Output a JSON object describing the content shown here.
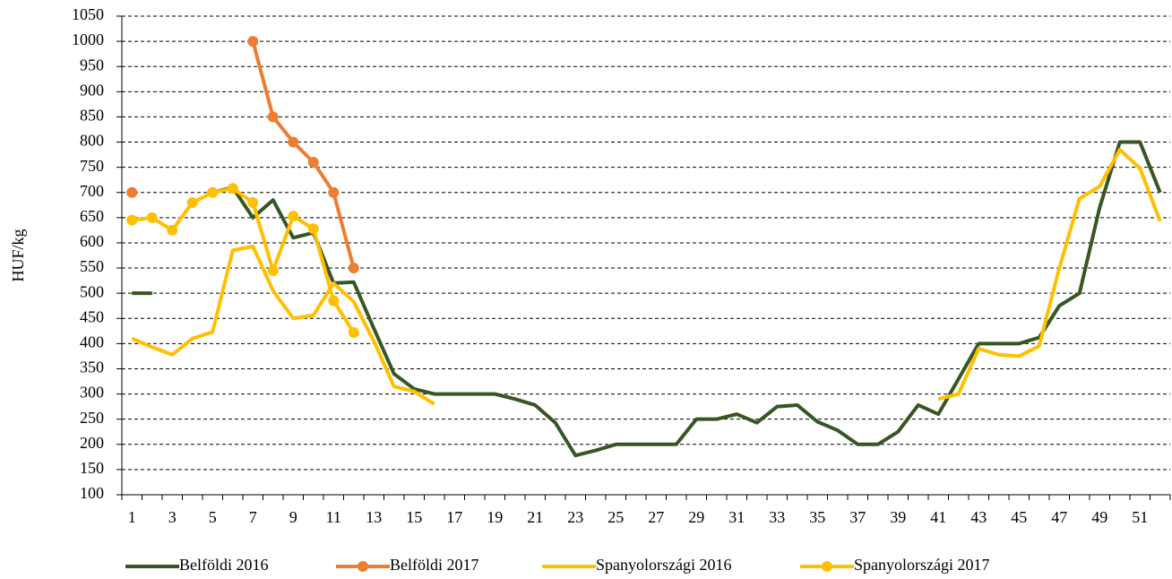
{
  "chart_data": {
    "type": "line",
    "y_label": "HUF/kg",
    "categories": [
      "1",
      null,
      "3",
      null,
      "5",
      null,
      "7",
      null,
      "9",
      null,
      "11",
      null,
      "13",
      null,
      "15",
      null,
      "17",
      null,
      "19",
      null,
      "21",
      null,
      "23",
      null,
      "25",
      null,
      "27",
      null,
      "29",
      null,
      "31",
      null,
      "33",
      null,
      "35",
      null,
      "37",
      null,
      "39",
      null,
      "41",
      null,
      "43",
      null,
      "45",
      null,
      "47",
      null,
      "49",
      null,
      "51",
      null
    ],
    "ylim": [
      100,
      1050
    ],
    "yticks": [
      100,
      150,
      200,
      250,
      300,
      350,
      400,
      450,
      500,
      550,
      600,
      650,
      700,
      750,
      800,
      850,
      900,
      950,
      1000,
      1050
    ],
    "grid": true,
    "legend": "bottom",
    "series": [
      {
        "name": "Belföldi 2016",
        "color": "#375623",
        "markers": false,
        "values": [
          500,
          500,
          null,
          null,
          700,
          710,
          650,
          685,
          610,
          620,
          520,
          522,
          430,
          340,
          310,
          300,
          300,
          300,
          300,
          290,
          278,
          243,
          178,
          188,
          200,
          200,
          200,
          200,
          250,
          250,
          260,
          243,
          275,
          278,
          245,
          228,
          200,
          200,
          225,
          278,
          260,
          330,
          400,
          400,
          400,
          412,
          475,
          500,
          670,
          800,
          800,
          700
        ]
      },
      {
        "name": "Belföldi 2017",
        "color": "#ed7d31",
        "markers": true,
        "values": [
          700,
          null,
          null,
          null,
          null,
          null,
          1000,
          850,
          800,
          760,
          700,
          550,
          null,
          null,
          null,
          null,
          null,
          null,
          null,
          null,
          null,
          null,
          null,
          null,
          null,
          null,
          null,
          null,
          null,
          null,
          null,
          null,
          null,
          null,
          null,
          null,
          null,
          null,
          null,
          null,
          null,
          null,
          null,
          null,
          null,
          null,
          null,
          null,
          null,
          null,
          null,
          null
        ]
      },
      {
        "name": "Spanyolországi 2016",
        "color": "#ffc000",
        "markers": false,
        "values": [
          410,
          393,
          378,
          410,
          423,
          585,
          593,
          505,
          450,
          456,
          520,
          483,
          405,
          315,
          305,
          280,
          null,
          null,
          null,
          null,
          null,
          null,
          null,
          null,
          null,
          null,
          null,
          null,
          null,
          null,
          null,
          null,
          null,
          null,
          null,
          null,
          null,
          null,
          null,
          null,
          290,
          300,
          390,
          378,
          375,
          395,
          550,
          688,
          712,
          785,
          748,
          643
        ]
      },
      {
        "name": "Spanyolországi 2017",
        "color": "#ffc000",
        "markers": true,
        "values": [
          645,
          650,
          625,
          680,
          700,
          708,
          680,
          545,
          653,
          628,
          485,
          422,
          null,
          null,
          null,
          null,
          null,
          null,
          null,
          null,
          null,
          null,
          null,
          null,
          null,
          null,
          null,
          null,
          null,
          null,
          null,
          null,
          null,
          null,
          null,
          null,
          null,
          null,
          null,
          null,
          null,
          null,
          null,
          null,
          null,
          null,
          null,
          null,
          null,
          null,
          null,
          null
        ]
      }
    ]
  }
}
